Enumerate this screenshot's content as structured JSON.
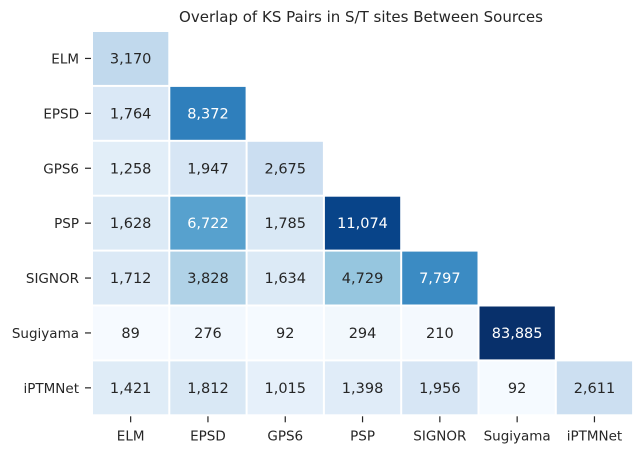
{
  "chart_data": {
    "type": "heatmap",
    "title": "Overlap of KS Pairs in S/T sites Between Sources",
    "xlabel": "",
    "ylabel": "",
    "x_categories": [
      "ELM",
      "EPSD",
      "GPS6",
      "PSP",
      "SIGNOR",
      "Sugiyama",
      "iPTMNet"
    ],
    "y_categories": [
      "ELM",
      "EPSD",
      "GPS6",
      "PSP",
      "SIGNOR",
      "Sugiyama",
      "iPTMNet"
    ],
    "mask": "upper-triangle",
    "colormap": "Blues",
    "color_range": [
      0,
      12000
    ],
    "grid": false,
    "legend": "none",
    "rows": [
      {
        "name": "ELM",
        "values": [
          3170
        ]
      },
      {
        "name": "EPSD",
        "values": [
          1764,
          8372
        ]
      },
      {
        "name": "GPS6",
        "values": [
          1258,
          1947,
          2675
        ]
      },
      {
        "name": "PSP",
        "values": [
          1628,
          6722,
          1785,
          11074
        ]
      },
      {
        "name": "SIGNOR",
        "values": [
          1712,
          3828,
          1634,
          4729,
          7797
        ]
      },
      {
        "name": "Sugiyama",
        "values": [
          89,
          276,
          92,
          294,
          210,
          83885
        ]
      },
      {
        "name": "iPTMNet",
        "values": [
          1421,
          1812,
          1015,
          1398,
          1956,
          92,
          2611
        ]
      }
    ]
  }
}
